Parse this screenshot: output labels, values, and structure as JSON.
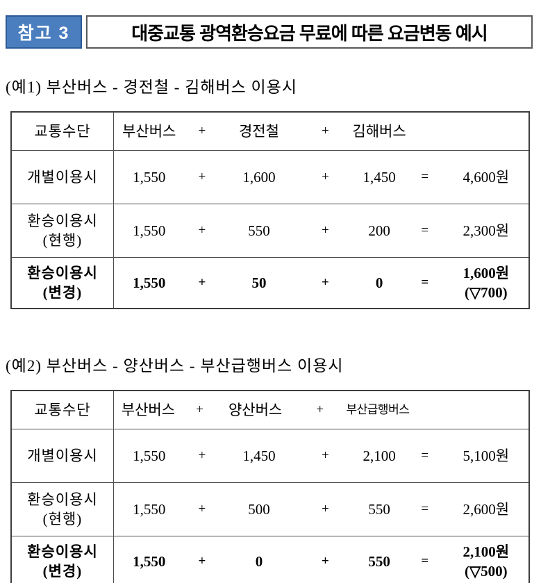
{
  "header": {
    "badge_label": "참고 3",
    "title": "대중교통 광역환승요금 무료에 따른 요금변동 예시"
  },
  "colors": {
    "badge_bg": "#4a7ebf",
    "badge_border": "#2d5a96",
    "badge_text": "#ffffff",
    "table_border": "#3d3d3d",
    "text": "#000000"
  },
  "examples": [
    {
      "label": "(예1) 부산버스 - 경전철 - 김해버스 이용시",
      "table": {
        "col_header": "교통수단",
        "mode1": "부산버스",
        "plus1": "+",
        "mode2": "경전철",
        "plus2": "+",
        "mode3": "김해버스",
        "rows": [
          {
            "label1": "개별이용시",
            "label2": "",
            "v1": "1,550",
            "op1": "+",
            "v2": "1,600",
            "op2": "+",
            "v3": "1,450",
            "eq": "=",
            "total1": "4,600원",
            "total2": ""
          },
          {
            "label1": "환승이용시",
            "label2": "(현행)",
            "v1": "1,550",
            "op1": "+",
            "v2": "550",
            "op2": "+",
            "v3": "200",
            "eq": "=",
            "total1": "2,300원",
            "total2": ""
          },
          {
            "label1": "환승이용시",
            "label2": "(변경)",
            "v1": "1,550",
            "op1": "+",
            "v2": "50",
            "op2": "+",
            "v3": "0",
            "eq": "=",
            "total1": "1,600원",
            "total2": "(▽700)"
          }
        ]
      }
    },
    {
      "label": "(예2) 부산버스 - 양산버스 - 부산급행버스 이용시",
      "table": {
        "col_header": "교통수단",
        "mode1": "부산버스",
        "plus1": "+",
        "mode2": "양산버스",
        "plus2": "+",
        "mode3": "부산급행버스",
        "rows": [
          {
            "label1": "개별이용시",
            "label2": "",
            "v1": "1,550",
            "op1": "+",
            "v2": "1,450",
            "op2": "+",
            "v3": "2,100",
            "eq": "=",
            "total1": "5,100원",
            "total2": ""
          },
          {
            "label1": "환승이용시",
            "label2": "(현행)",
            "v1": "1,550",
            "op1": "+",
            "v2": "500",
            "op2": "+",
            "v3": "550",
            "eq": "=",
            "total1": "2,600원",
            "total2": ""
          },
          {
            "label1": "환승이용시",
            "label2": "(변경)",
            "v1": "1,550",
            "op1": "+",
            "v2": "0",
            "op2": "+",
            "v3": "550",
            "eq": "=",
            "total1": "2,100원",
            "total2": "(▽500)"
          }
        ]
      }
    }
  ]
}
